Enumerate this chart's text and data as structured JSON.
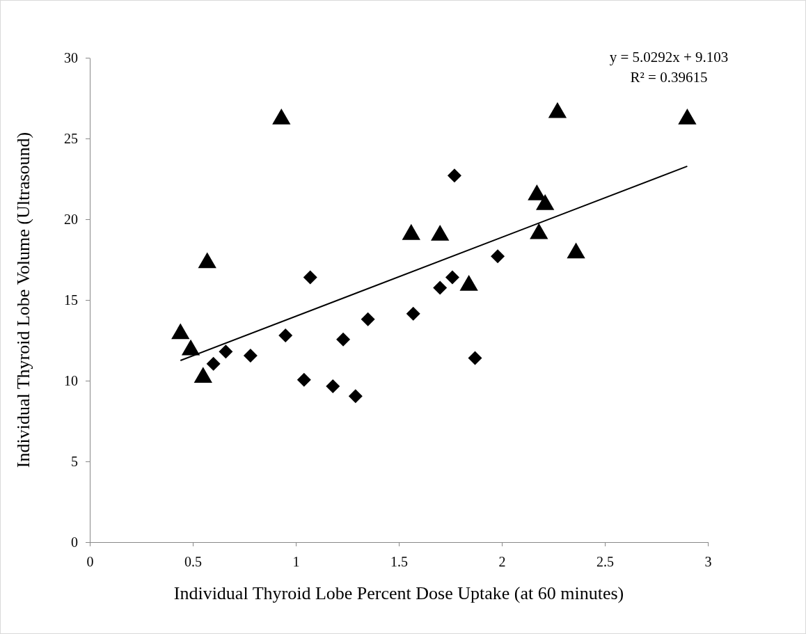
{
  "chart_data": {
    "type": "scatter",
    "xlabel": "Individual Thyroid Lobe Percent Dose Uptake (at 60 minutes)",
    "ylabel": "Individual Thyroid Lobe Volume (Ultrasound)",
    "xlim": [
      0,
      3
    ],
    "xticks": [
      0,
      0.5,
      1,
      1.5,
      2,
      2.5,
      3
    ],
    "ylim": [
      0,
      30
    ],
    "yticks": [
      0,
      5,
      10,
      15,
      20,
      25,
      30
    ],
    "grid": false,
    "annotations": [
      "y = 5.0292x + 9.103",
      "R² = 0.39615"
    ],
    "series": [
      {
        "marker": "triangle",
        "color": "#000000",
        "x": [
          0.44,
          0.49,
          0.55,
          0.57,
          0.93,
          1.56,
          2.27,
          2.9,
          2.17,
          2.21,
          2.18,
          1.7,
          2.36,
          1.84
        ],
        "values": [
          12.9,
          11.9,
          10.2,
          17.3,
          26.2,
          19.05,
          26.6,
          26.2,
          21.5,
          20.9,
          19.1,
          19.0,
          17.9,
          15.9
        ]
      },
      {
        "marker": "diamond",
        "color": "#000000",
        "x": [
          0.6,
          0.66,
          0.78,
          0.95,
          1.04,
          1.07,
          1.18,
          1.23,
          1.29,
          1.35,
          1.57,
          1.77,
          1.98,
          1.76,
          1.7,
          1.87
        ],
        "values": [
          11.05,
          11.8,
          11.55,
          12.8,
          10.05,
          16.4,
          9.65,
          12.55,
          9.04,
          13.8,
          14.15,
          22.7,
          17.7,
          16.4,
          15.75,
          11.4
        ]
      },
      {
        "type": "line",
        "marker": "none",
        "color": "#000000",
        "x": [
          0.44,
          2.9
        ],
        "values": [
          11.25,
          23.28
        ]
      }
    ]
  }
}
